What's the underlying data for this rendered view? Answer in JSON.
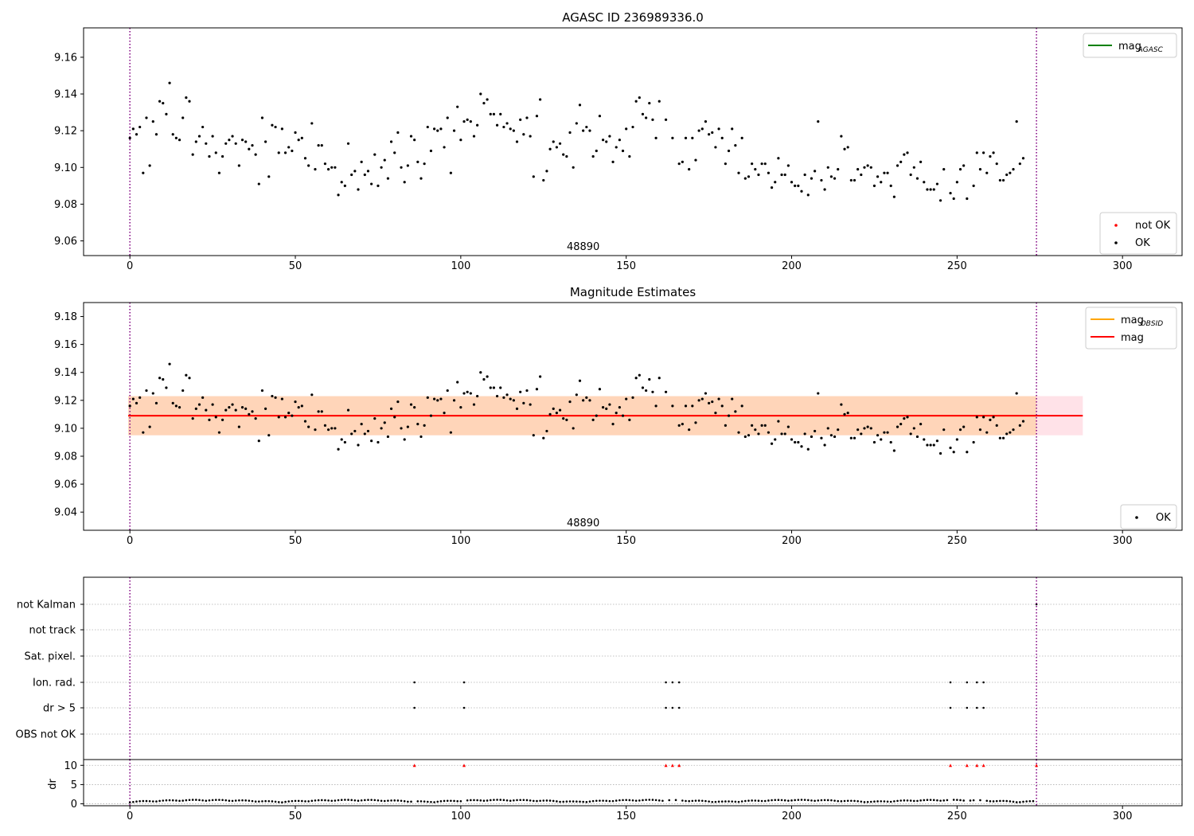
{
  "chart_data": [
    {
      "type": "scatter",
      "title": "AGASC ID 236989336.0",
      "xlim": [
        -14,
        318
      ],
      "ylim": [
        9.052,
        9.176
      ],
      "xticks": [
        0,
        50,
        100,
        150,
        200,
        250,
        300
      ],
      "yticks": [
        9.06,
        9.08,
        9.1,
        9.12,
        9.14,
        9.16
      ],
      "ytick_decimals": 2,
      "vlines": [
        0,
        274
      ],
      "vline_color": "#800080",
      "annotation": {
        "text": "48890",
        "x": 137,
        "y": 9.0555
      },
      "legends": [
        {
          "position": "top-right",
          "items": [
            {
              "kind": "line",
              "color": "#008000",
              "label": "mag",
              "sub": "AGASC"
            }
          ]
        },
        {
          "position": "bottom-right",
          "items": [
            {
              "kind": "dot",
              "color": "#ff0000",
              "label": "not OK"
            },
            {
              "kind": "dot",
              "color": "#000000",
              "label": "OK"
            }
          ]
        }
      ],
      "series": [
        {
          "name": "OK",
          "color": "#000000",
          "x_start": 0,
          "x_step": 1,
          "y": [
            9.116,
            9.121,
            9.118,
            9.122,
            9.097,
            9.127,
            9.101,
            9.125,
            9.118,
            9.136,
            9.135,
            9.129,
            9.146,
            9.118,
            9.116,
            9.115,
            9.127,
            9.138,
            9.136,
            9.107,
            9.114,
            9.117,
            9.122,
            9.113,
            9.106,
            9.117,
            9.108,
            9.097,
            9.106,
            9.113,
            9.115,
            9.117,
            9.113,
            9.101,
            9.115,
            9.114,
            9.11,
            9.112,
            9.107,
            9.091,
            9.127,
            9.114,
            9.095,
            9.123,
            9.122,
            9.108,
            9.121,
            9.108,
            9.111,
            9.109,
            9.119,
            9.115,
            9.116,
            9.105,
            9.101,
            9.124,
            9.099,
            9.112,
            9.112,
            9.102,
            9.099,
            9.1,
            9.1,
            9.085,
            9.092,
            9.09,
            9.113,
            9.096,
            9.098,
            9.088,
            9.103,
            9.096,
            9.098,
            9.091,
            9.107,
            9.09,
            9.1,
            9.104,
            9.094,
            9.114,
            9.108,
            9.119,
            9.1,
            9.092,
            9.101,
            9.117,
            9.115,
            9.103,
            9.094,
            9.102,
            9.122,
            9.109,
            9.121,
            9.12,
            9.121,
            9.111,
            9.127,
            9.097,
            9.12,
            9.133,
            9.115,
            9.125,
            9.126,
            9.125,
            9.117,
            9.123,
            9.14,
            9.135,
            9.137,
            9.129,
            9.129,
            9.123,
            9.129,
            9.122,
            9.124,
            9.121,
            9.12,
            9.114,
            9.126,
            9.118,
            9.127,
            9.117,
            9.095,
            9.128,
            9.137,
            9.093,
            9.098,
            9.11,
            9.114,
            9.111,
            9.113,
            9.107,
            9.106,
            9.119,
            9.1,
            9.124,
            9.134,
            9.12,
            9.122,
            9.12,
            9.106,
            9.109,
            9.128,
            9.115,
            9.114,
            9.117,
            9.103,
            9.111,
            9.115,
            9.109,
            9.121,
            9.106,
            9.122,
            9.136,
            9.138,
            9.129,
            9.127,
            9.135,
            9.126,
            9.116,
            9.136,
            null,
            9.126,
            null,
            9.116,
            null,
            9.102,
            9.103,
            9.116,
            9.099,
            9.116,
            9.104,
            9.12,
            9.121,
            9.125,
            9.118,
            9.119,
            9.111,
            9.121,
            9.116,
            9.102,
            9.109,
            9.121,
            9.112,
            9.097,
            9.116,
            9.094,
            9.095,
            9.102,
            9.099,
            9.096,
            9.102,
            9.102,
            9.097,
            9.089,
            9.092,
            9.105,
            9.096,
            9.096,
            9.101,
            9.092,
            9.09,
            9.09,
            9.087,
            9.096,
            9.085,
            9.094,
            9.098,
            9.125,
            9.093,
            9.088,
            9.1,
            9.095,
            9.094,
            9.099,
            9.117,
            9.11,
            9.111,
            9.093,
            9.093,
            9.099,
            9.096,
            9.1,
            9.101,
            9.1,
            9.09,
            9.095,
            9.092,
            9.097,
            9.097,
            9.09,
            9.084,
            9.101,
            9.103,
            9.107,
            9.108,
            9.096,
            9.1,
            9.094,
            9.103,
            9.092,
            9.088,
            9.088,
            9.088,
            9.091,
            9.082,
            9.099,
            null,
            9.086,
            9.083,
            9.092,
            9.099,
            9.101,
            9.083,
            null,
            9.09,
            9.108,
            9.099,
            9.108,
            9.097,
            9.106,
            9.108,
            9.102,
            9.093,
            9.093,
            9.096,
            9.097,
            9.099,
            9.125,
            9.102,
            9.105
          ]
        }
      ]
    },
    {
      "type": "scatter",
      "title": "Magnitude Estimates",
      "xlim": [
        -14,
        318
      ],
      "ylim": [
        9.027,
        9.19
      ],
      "xticks": [
        0,
        50,
        100,
        150,
        200,
        250,
        300
      ],
      "yticks": [
        9.04,
        9.06,
        9.08,
        9.1,
        9.12,
        9.14,
        9.16,
        9.18
      ],
      "ytick_decimals": 2,
      "vlines": [
        0,
        274
      ],
      "vline_color": "#800080",
      "annotation": {
        "text": "48890",
        "x": 137,
        "y": 9.0305
      },
      "bands": [
        {
          "x0": -0.5,
          "x1": 288,
          "y0": 9.095,
          "y1": 9.123,
          "color": "#ffa0b4",
          "opacity": 0.3
        },
        {
          "x0": -0.5,
          "x1": 274,
          "y0": 9.095,
          "y1": 9.123,
          "color": "#ffa500",
          "opacity": 0.2
        }
      ],
      "hlines": [
        {
          "y": 9.109,
          "x0": -0.5,
          "x1": 274,
          "color": "#ffa500",
          "label": "mag",
          "sub": "OBSID"
        },
        {
          "y": 9.109,
          "x0": -0.5,
          "x1": 288,
          "color": "#ff0000",
          "label": "mag"
        }
      ],
      "legends": [
        {
          "position": "top-right",
          "items": [
            {
              "kind": "line",
              "color": "#ffa500",
              "label": "mag",
              "sub": "OBSID"
            },
            {
              "kind": "line",
              "color": "#ff0000",
              "label": "mag"
            }
          ]
        },
        {
          "position": "bottom-right",
          "items": [
            {
              "kind": "dot",
              "color": "#000000",
              "label": "OK"
            }
          ]
        }
      ],
      "series_ref": 0
    },
    {
      "type": "scatter",
      "title": "",
      "xlim": [
        -14,
        318
      ],
      "xticks": [
        0,
        50,
        100,
        150,
        200,
        250,
        300
      ],
      "vlines": [
        0,
        274
      ],
      "vline_color": "#800080",
      "flag_rows": [
        "not Kalman",
        "not track",
        "Sat. pixel.",
        "Ion. rad.",
        "dr > 5",
        "OBS not OK"
      ],
      "flags": {
        "Ion. rad.": [
          86,
          101,
          162,
          164,
          166,
          248,
          253,
          256,
          258
        ],
        "dr > 5": [
          86,
          101,
          162,
          164,
          166,
          248,
          253,
          256,
          258
        ],
        "not Kalman": [
          274
        ]
      }
    },
    {
      "type": "scatter",
      "title": "",
      "xlim": [
        -14,
        318
      ],
      "ylim": [
        -0.5,
        11.5
      ],
      "xticks": [
        0,
        50,
        100,
        150,
        200,
        250,
        300
      ],
      "yticks": [
        0,
        5,
        10
      ],
      "ylabel": "dr",
      "vlines": [
        0,
        274
      ],
      "vline_color": "#800080",
      "outliers": [
        86,
        101,
        162,
        164,
        166,
        248,
        253,
        256,
        258,
        274
      ],
      "outlier_value": 10
    }
  ]
}
